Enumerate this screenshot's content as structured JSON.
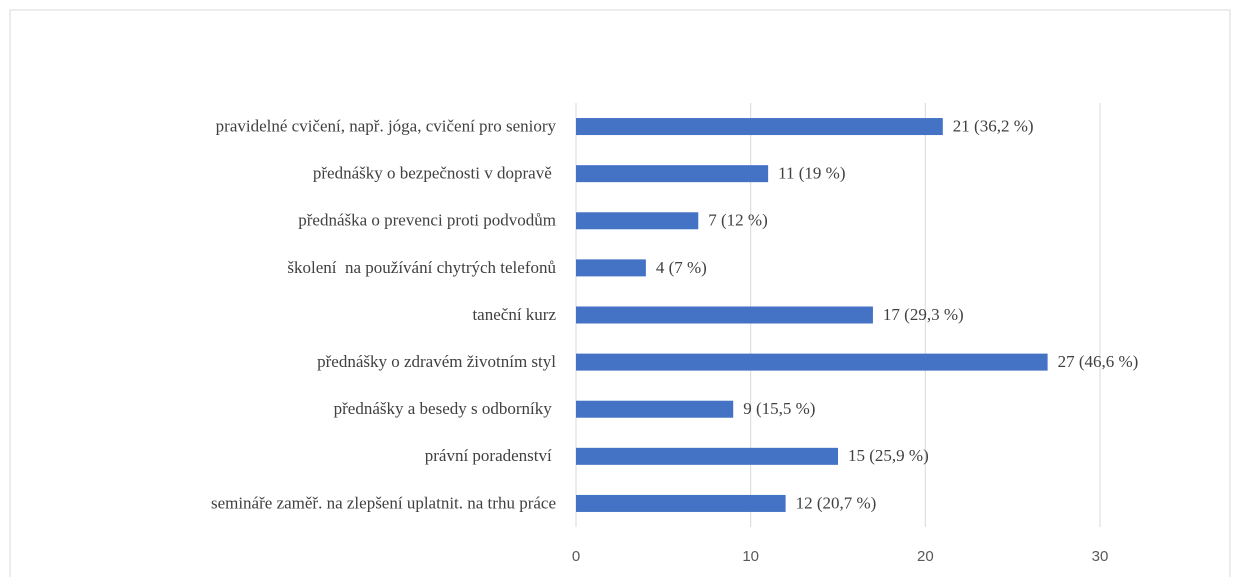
{
  "chart_data": {
    "type": "bar",
    "orientation": "horizontal",
    "categories": [
      "pravidelné cvičení, např. jóga, cvičení pro seniory",
      "přednášky o bezpečnosti v dopravě ",
      "přednáška o prevenci proti podvodům",
      "školení  na používání chytrých telefonů",
      "taneční kurz",
      "přednášky o zdravém životním styl",
      "přednášky a besedy s odborníky ",
      "právní poradenství ",
      "semináře zaměř. na zlepšení uplatnit. na trhu práce"
    ],
    "values": [
      21,
      11,
      7,
      4,
      17,
      27,
      9,
      15,
      12
    ],
    "value_labels": [
      "21 (36,2 %)",
      "11 (19 %)",
      "7 (12 %)",
      "4 (7 %)",
      "17 (29,3 %)",
      "27 (46,6 %)",
      "9 (15,5 %)",
      "15 (25,9 %)",
      "12 (20,7 %)"
    ],
    "color": "#4472c4",
    "xlim": [
      0,
      30
    ],
    "xticks": [
      0,
      10,
      20,
      30
    ],
    "grid": true
  }
}
